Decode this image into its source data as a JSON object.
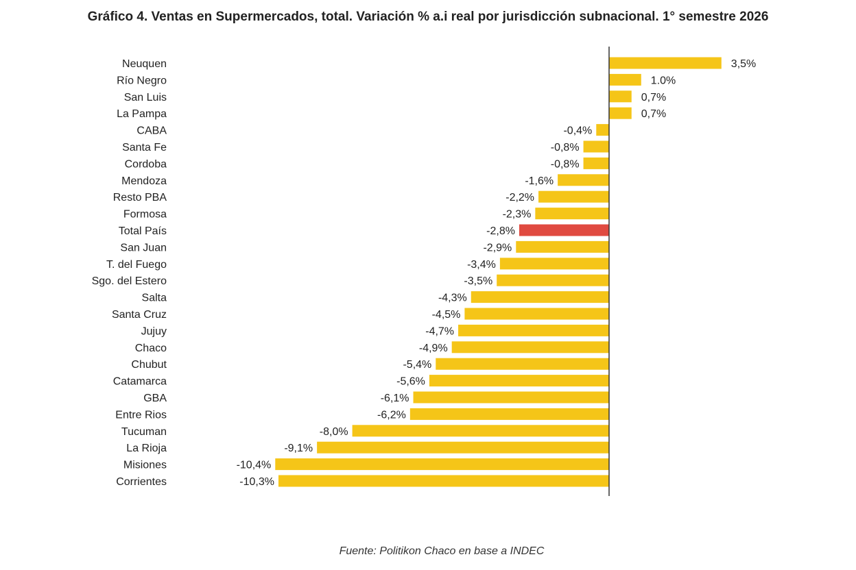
{
  "title": "Gráfico 4. Ventas en Supermercados, total. Variación % a.i real por jurisdicción subnacional. 1° semestre 2026",
  "source": "Fuente: Politikon Chaco en base a INDEC",
  "colors": {
    "bar": "#F5C518",
    "highlight": "#E04A40",
    "axis": "#333333",
    "text": "#222222"
  },
  "chart_data": {
    "type": "bar",
    "orientation": "horizontal",
    "title": "Gráfico 4. Ventas en Supermercados, total. Variación % a.i real por jurisdicción subnacional. 1° semestre 2026",
    "highlight_category": "Total País",
    "categories": [
      "Neuquen",
      "Río Negro",
      "San Luis",
      "La Pampa",
      "CABA",
      "Santa Fe",
      "Cordoba",
      "Mendoza",
      "Resto PBA",
      "Formosa",
      "Total País",
      "San Juan",
      "T. del Fuego",
      "Sgo. del Estero",
      "Salta",
      "Santa Cruz",
      "Jujuy",
      "Chaco",
      "Chubut",
      "Catamarca",
      "GBA",
      "Entre Rios",
      "Tucuman",
      "La Rioja",
      "Misiones",
      "Corrientes"
    ],
    "values": [
      3.5,
      1.0,
      0.7,
      0.7,
      -0.4,
      -0.8,
      -0.8,
      -1.6,
      -2.2,
      -2.3,
      -2.8,
      -2.9,
      -3.4,
      -3.5,
      -4.3,
      -4.5,
      -4.7,
      -4.9,
      -5.4,
      -5.6,
      -6.1,
      -6.2,
      -8.0,
      -9.1,
      -10.4,
      -10.3
    ],
    "value_labels": [
      "3,5%",
      "1.0%",
      "0,7%",
      "0,7%",
      "-0,4%",
      "-0,8%",
      "-0,8%",
      "-1,6%",
      "-2,2%",
      "-2,3%",
      "-2,8%",
      "-2,9%",
      "-3,4%",
      "-3,5%",
      "-4,3%",
      "-4,5%",
      "-4,7%",
      "-4,9%",
      "-5,4%",
      "-5,6%",
      "-6,1%",
      "-6,2%",
      "-8,0%",
      "-9,1%",
      "-10,4%",
      "-10,3%"
    ],
    "xlim": [
      -10.5,
      3.6
    ],
    "grid": false,
    "legend": "none"
  }
}
